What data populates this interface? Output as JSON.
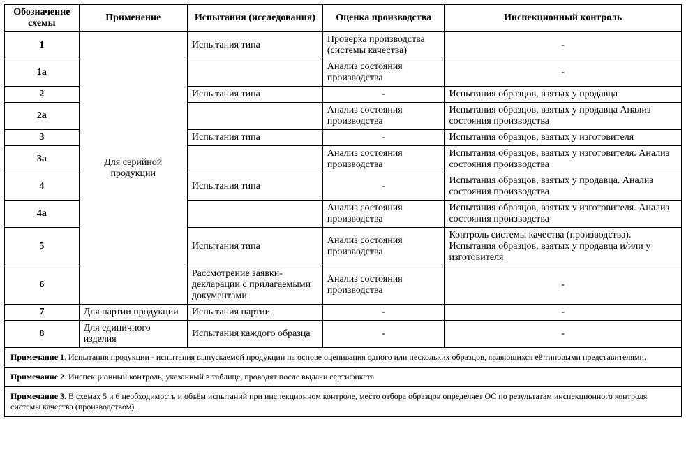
{
  "headers": {
    "scheme": "Обозначение схемы",
    "application": "Применение",
    "tests": "Испытания (исследования)",
    "evaluation": "Оценка производства",
    "inspection": "Инспекционный контроль"
  },
  "app_groups": {
    "serial": "Для серийной продукции",
    "batch": "Для партии продукции",
    "single": "Для единичного изделия"
  },
  "rows": {
    "r1": {
      "scheme": "1",
      "tests": "Испытания типа",
      "evaluation": "Проверка производства (системы качества)",
      "inspection": "-"
    },
    "r1a": {
      "scheme": "1а",
      "tests": "",
      "evaluation": "Анализ состояния производства",
      "inspection": "-"
    },
    "r2": {
      "scheme": "2",
      "tests": "Испытания типа",
      "evaluation": "-",
      "inspection": "Испытания образцов, взятых у продавца"
    },
    "r2a": {
      "scheme": "2а",
      "tests": "",
      "evaluation": "Анализ состояния производства",
      "inspection": "Испытания образцов, взятых у продавца Анализ состояния производства"
    },
    "r3": {
      "scheme": "3",
      "tests": "Испытания типа",
      "evaluation": "-",
      "inspection": "Испытания образцов, взятых у изготовителя"
    },
    "r3a": {
      "scheme": "3а",
      "tests": "",
      "evaluation": "Анализ состояния производства",
      "inspection": "Испытания образцов, взятых у изготовителя. Анализ состояния производства"
    },
    "r4": {
      "scheme": "4",
      "tests": "Испытания типа",
      "evaluation": "-",
      "inspection": "Испытания образцов, взятых у продавца. Анализ состояния производства"
    },
    "r4a": {
      "scheme": "4а",
      "tests": "",
      "evaluation": "Анализ состояния производства",
      "inspection": "Испытания образцов, взятых у изготовителя. Анализ состояния производства"
    },
    "r5": {
      "scheme": "5",
      "tests": "Испытания типа",
      "evaluation": "Анализ состояния производства",
      "inspection": "Контроль системы качества (производства). Испытания образцов, взятых у продавца и/или у изготовителя"
    },
    "r6": {
      "scheme": "6",
      "tests": "Рассмотрение заявки-декларации с прилагаемыми документами",
      "evaluation": "Анализ состояния производства",
      "inspection": "-"
    },
    "r7": {
      "scheme": "7",
      "tests": "Испытания партии",
      "evaluation": "-",
      "inspection": "-"
    },
    "r8": {
      "scheme": "8",
      "tests": "Испытания каждого образца",
      "evaluation": "-",
      "inspection": "-"
    }
  },
  "notes": {
    "n1_label": "Примечание 1",
    "n1_text": ".  Испытания продукции - испытания выпускаемой продукции на основе оценивания одного или нескольких образцов, являющихся её типовыми представителями.",
    "n2_label": "Примечание 2",
    "n2_text": ".  Инспекционный контроль, указанный в таблице, проводят после выдачи сертификата",
    "n3_label": "Примечание 3",
    "n3_text": ".  В схемах 5 и 6 необходимость и объём испытаний при инспекционном контроле, место отбора образцов определяет ОС по результатам инспекционного контроля системы качества (производством)."
  }
}
